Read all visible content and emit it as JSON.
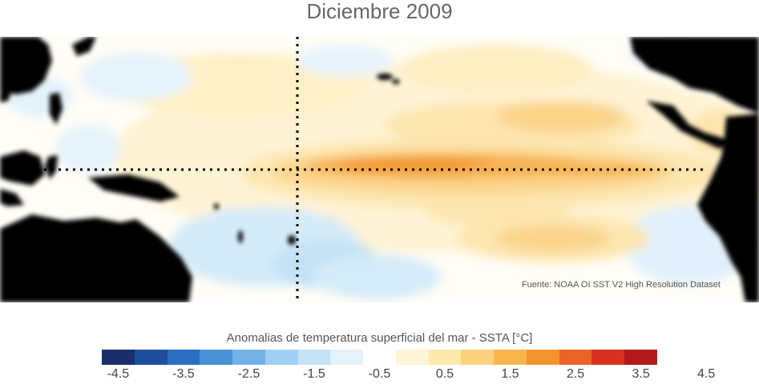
{
  "title": "Diciembre 2009",
  "source": "Fuente: NOAA OI SST V2 High Resolution Dataset",
  "colorbar": {
    "label": "Anomalias de temperatura superficial del mar - SSTA  [°C]",
    "colors": [
      "#1b2d6b",
      "#1f4e9d",
      "#2b6fc2",
      "#4a92d6",
      "#72b2e6",
      "#9fd0f2",
      "#c6e3f6",
      "#e4f2fa",
      "#ffffff",
      "#fef5d6",
      "#fde8ad",
      "#fbd27c",
      "#f9b54d",
      "#f5932c",
      "#ea6425",
      "#d6321f",
      "#b31a1c"
    ],
    "ticks": [
      "-4.5",
      "-3.5",
      "-2.5",
      "-1.5",
      "-0.5",
      "0.5",
      "1.5",
      "2.5",
      "3.5",
      "4.5"
    ]
  },
  "map_colors": {
    "land": "#000000",
    "ocean_base": "#fffdf6",
    "warm_light": "#fef0c6",
    "warm_mid": "#fbd48a",
    "warm_strong": "#f7b455",
    "warm_core": "#f39a35",
    "cool_light": "#ddeffa",
    "cool_mid": "#b9dcf3"
  }
}
